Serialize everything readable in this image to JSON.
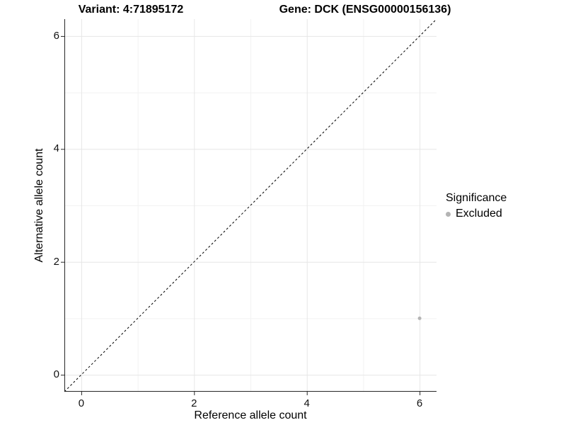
{
  "header": {
    "title_left": "Variant: 4:71895172",
    "title_right": "Gene: DCK (ENSG00000156136)"
  },
  "chart_data": {
    "type": "scatter",
    "title_left": "Variant: 4:71895172",
    "title_right": "Gene: DCK (ENSG00000156136)",
    "xlabel": "Reference allele count",
    "ylabel": "Alternative allele count",
    "xlim": [
      -0.3,
      6.3
    ],
    "ylim": [
      -0.3,
      6.3
    ],
    "major_ticks": [
      0,
      2,
      4,
      6
    ],
    "minor_gridlines": [
      1,
      3,
      5
    ],
    "grid": "on",
    "reference_line": {
      "style": "dashed",
      "slope": 1,
      "intercept": 0,
      "color": "#000000"
    },
    "series": [
      {
        "name": "Excluded",
        "color": "#b4b4b4",
        "points": [
          {
            "x": 6,
            "y": 1
          }
        ]
      }
    ],
    "legend": {
      "position": "right",
      "title": "Significance",
      "entries": [
        {
          "label": "Excluded",
          "color": "#b4b4b4"
        }
      ]
    },
    "colors": {
      "background": "#ffffff",
      "grid_major": "#e6e6e6",
      "grid_minor": "#f2f2f2",
      "axis_line": "#262626",
      "tick_mark": "#262626",
      "point": "#b4b4b4",
      "reference_line": "#000000"
    }
  }
}
